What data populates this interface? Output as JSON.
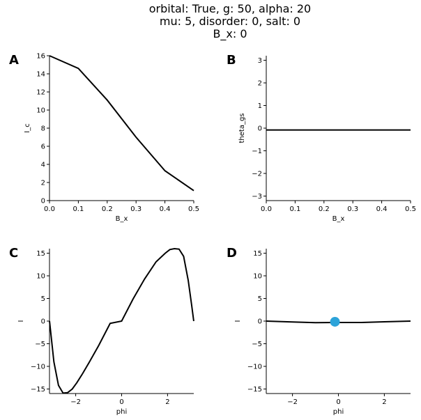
{
  "figure": {
    "title_lines": [
      "orbital: True, g: 50, alpha: 20",
      "mu: 5, disorder: 0, salt: 0",
      "B_x: 0"
    ]
  },
  "chart_data": [
    {
      "panel": "A",
      "type": "line",
      "xlabel": "B_x",
      "ylabel": "I_c",
      "xlim": [
        0.0,
        0.5
      ],
      "ylim": [
        0,
        16
      ],
      "xticks": [
        0.0,
        0.1,
        0.2,
        0.3,
        0.4,
        0.5
      ],
      "xtick_labels": [
        "0.0",
        "0.1",
        "0.2",
        "0.3",
        "0.4",
        "0.5"
      ],
      "yticks": [
        0,
        2,
        4,
        6,
        8,
        10,
        12,
        14,
        16
      ],
      "ytick_labels": [
        "0",
        "2",
        "4",
        "6",
        "8",
        "10",
        "12",
        "14",
        "16"
      ],
      "series": [
        {
          "color": "#000000",
          "x": [
            0.0,
            0.1,
            0.2,
            0.3,
            0.4,
            0.5
          ],
          "y": [
            16.0,
            14.6,
            11.1,
            7.0,
            3.3,
            1.1
          ]
        }
      ]
    },
    {
      "panel": "B",
      "type": "line",
      "xlabel": "B_x",
      "ylabel": "theta_gs",
      "xlim": [
        0.0,
        0.5
      ],
      "ylim": [
        -3.2,
        3.2
      ],
      "xticks": [
        0.0,
        0.1,
        0.2,
        0.3,
        0.4,
        0.5
      ],
      "xtick_labels": [
        "0.0",
        "0.1",
        "0.2",
        "0.3",
        "0.4",
        "0.5"
      ],
      "yticks": [
        -3,
        -2,
        -1,
        0,
        1,
        2,
        3
      ],
      "ytick_labels": [
        "−3",
        "−2",
        "−1",
        "0",
        "1",
        "2",
        "3"
      ],
      "series": [
        {
          "color": "#000000",
          "x": [
            0.0,
            0.1,
            0.2,
            0.3,
            0.4,
            0.5
          ],
          "y": [
            -0.08,
            -0.08,
            -0.08,
            -0.08,
            -0.08,
            -0.08
          ]
        }
      ]
    },
    {
      "panel": "C",
      "type": "line",
      "xlabel": "phi",
      "ylabel": "I",
      "xlim": [
        -3.1416,
        3.1416
      ],
      "ylim": [
        -16,
        16
      ],
      "xticks": [
        -2,
        0,
        2
      ],
      "xtick_labels": [
        "−2",
        "0",
        "2"
      ],
      "yticks": [
        -15,
        -10,
        -5,
        0,
        5,
        10,
        15
      ],
      "ytick_labels": [
        "−15",
        "−10",
        "−5",
        "0",
        "5",
        "10",
        "15"
      ],
      "series": [
        {
          "color": "#000000",
          "x": [
            -3.14,
            -2.95,
            -2.75,
            -2.55,
            -2.35,
            -2.15,
            -1.95,
            -1.7,
            -1.4,
            -1.0,
            -0.5,
            0.0,
            0.5,
            1.0,
            1.5,
            1.9,
            2.1,
            2.3,
            2.5,
            2.7,
            2.9,
            3.05,
            3.14
          ],
          "y": [
            0.0,
            -9.0,
            -14.2,
            -15.9,
            -15.8,
            -15.0,
            -13.6,
            -11.6,
            -9.0,
            -5.4,
            -0.5,
            0.0,
            4.9,
            9.3,
            13.1,
            15.0,
            15.8,
            16.0,
            15.9,
            14.3,
            9.0,
            3.5,
            0.0
          ]
        }
      ]
    },
    {
      "panel": "D",
      "type": "line",
      "xlabel": "phi",
      "ylabel": "I",
      "xlim": [
        -3.1416,
        3.1416
      ],
      "ylim": [
        -16,
        16
      ],
      "xticks": [
        -2,
        0,
        2
      ],
      "xtick_labels": [
        "−2",
        "0",
        "2"
      ],
      "yticks": [
        -15,
        -10,
        -5,
        0,
        5,
        10,
        15
      ],
      "ytick_labels": [
        "−15",
        "−10",
        "−5",
        "0",
        "5",
        "10",
        "15"
      ],
      "series": [
        {
          "color": "#000000",
          "x": [
            -3.14,
            -2.0,
            -1.0,
            -0.1,
            1.0,
            2.0,
            3.14
          ],
          "y": [
            0.0,
            -0.2,
            -0.35,
            -0.3,
            -0.3,
            -0.15,
            0.0
          ]
        }
      ],
      "marker": {
        "x": -0.15,
        "y": -0.15,
        "color": "#2ca3d9"
      }
    }
  ]
}
